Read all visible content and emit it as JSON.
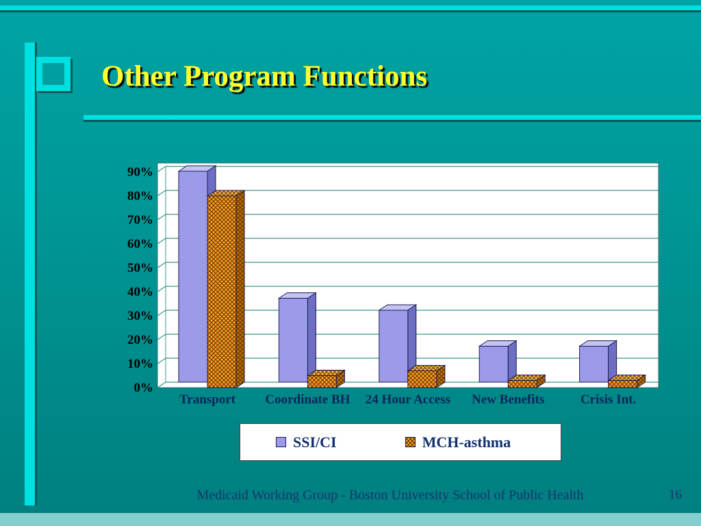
{
  "slide": {
    "title": "Other Program Functions",
    "footer": "Medicaid Working Group - Boston University School of Public Health",
    "page_number": "16"
  },
  "colors": {
    "background_top": "#00A4A4",
    "background_bottom": "#007E7E",
    "accent_stripe": "#00E0E0",
    "stripe_shadow": "#015A5A",
    "bottom_band": "#84CFCE",
    "title_text": "#FFFF2E",
    "title_shadow": "#0A0A0A",
    "plot_bg": "#FFFFFF",
    "plot_border": "#2B6B6B",
    "gridline": "#0B7B6E",
    "axis_text": "#000000",
    "category_text": "#0A2558",
    "legend_text": "#12316E",
    "footer_text": "#16356F",
    "ssi_front": "#9B9BEA",
    "ssi_top": "#C3C3F4",
    "ssi_side": "#6E6EC4",
    "mch_front": "#FF9D1E",
    "mch_top": "#FFB347",
    "mch_side": "#C87400",
    "bar_outline": "#1B1B52"
  },
  "chart_data": {
    "type": "bar",
    "style": "3d-clustered-column",
    "categories": [
      "Transport",
      "Coordinate BH",
      "24 Hour Access",
      "New Benefits",
      "Crisis Int."
    ],
    "series": [
      {
        "name": "SSI/CI",
        "values": [
          88,
          35,
          30,
          15,
          15
        ]
      },
      {
        "name": "MCH-asthma",
        "values": [
          80,
          5,
          7,
          3,
          3
        ]
      }
    ],
    "value_unit": "%",
    "ylim": [
      0,
      90
    ],
    "ytick_labels": [
      "0%",
      "10%",
      "20%",
      "30%",
      "40%",
      "50%",
      "60%",
      "70%",
      "80%",
      "90%"
    ],
    "grid": true,
    "legend_position": "bottom"
  }
}
